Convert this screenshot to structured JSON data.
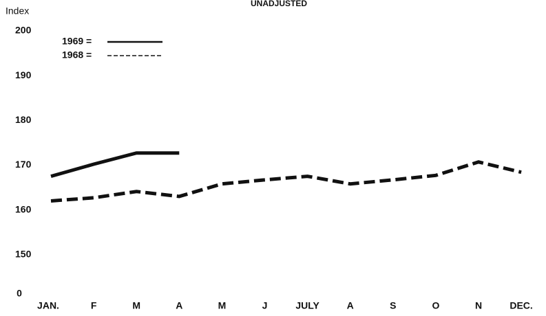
{
  "chart_data": {
    "type": "line",
    "title": "UNADJUSTED",
    "y_label": "Index",
    "categories": [
      "JAN.",
      "F",
      "M",
      "A",
      "M",
      "J",
      "JULY",
      "A",
      "S",
      "O",
      "N",
      "DEC."
    ],
    "series": [
      {
        "name": "1969 =",
        "color": "#111111",
        "style": "solid",
        "values": [
          166.3,
          169,
          171.5,
          171.5,
          null,
          null,
          null,
          null,
          null,
          null,
          null,
          null
        ]
      },
      {
        "name": "1968 =",
        "color": "#111111",
        "style": "dashed",
        "values": [
          160.8,
          161.5,
          162.9,
          161.8,
          164.6,
          165.5,
          166.3,
          164.6,
          165.5,
          166.5,
          169.5,
          167.2
        ]
      }
    ],
    "ylim": [
      140,
      200
    ],
    "yticks": [
      150,
      160,
      170,
      180,
      190,
      200
    ],
    "y_origin_label": "0",
    "grid": false
  }
}
